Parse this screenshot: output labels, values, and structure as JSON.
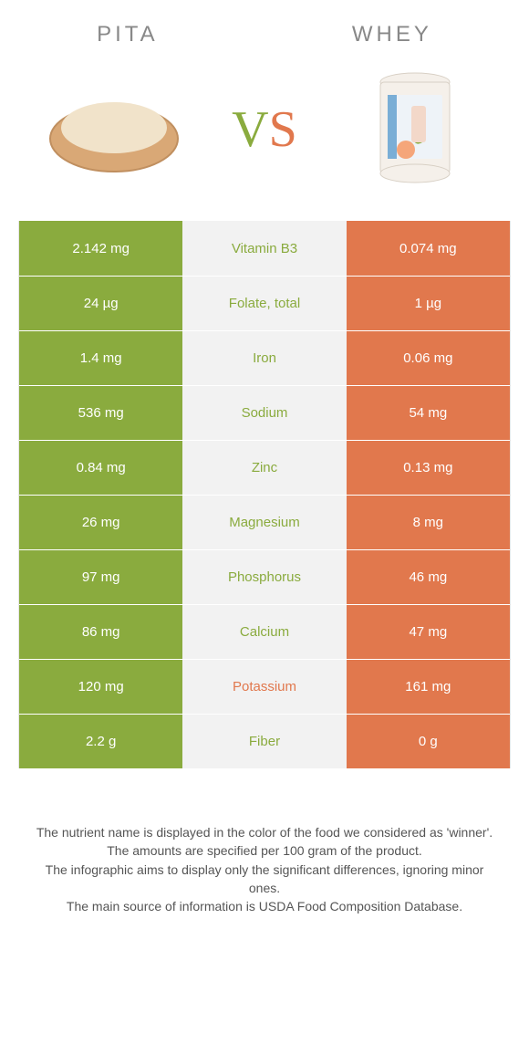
{
  "header": {
    "left_title": "Pita",
    "right_title": "Whey"
  },
  "vs": {
    "v": "V",
    "s": "S"
  },
  "colors": {
    "pita": "#8aab3e",
    "whey": "#e1784d",
    "mid_bg": "#f2f2f2"
  },
  "rows": [
    {
      "left": "2.142 mg",
      "nutrient": "Vitamin B3",
      "right": "0.074 mg",
      "winner": "pita"
    },
    {
      "left": "24 µg",
      "nutrient": "Folate, total",
      "right": "1 µg",
      "winner": "pita"
    },
    {
      "left": "1.4 mg",
      "nutrient": "Iron",
      "right": "0.06 mg",
      "winner": "pita"
    },
    {
      "left": "536 mg",
      "nutrient": "Sodium",
      "right": "54 mg",
      "winner": "pita"
    },
    {
      "left": "0.84 mg",
      "nutrient": "Zinc",
      "right": "0.13 mg",
      "winner": "pita"
    },
    {
      "left": "26 mg",
      "nutrient": "Magnesium",
      "right": "8 mg",
      "winner": "pita"
    },
    {
      "left": "97 mg",
      "nutrient": "Phosphorus",
      "right": "46 mg",
      "winner": "pita"
    },
    {
      "left": "86 mg",
      "nutrient": "Calcium",
      "right": "47 mg",
      "winner": "pita"
    },
    {
      "left": "120 mg",
      "nutrient": "Potassium",
      "right": "161 mg",
      "winner": "whey"
    },
    {
      "left": "2.2 g",
      "nutrient": "Fiber",
      "right": "0 g",
      "winner": "pita"
    }
  ],
  "footer": {
    "l1": "The nutrient name is displayed in the color of the food we considered as 'winner'.",
    "l2": "The amounts are specified per 100 gram of the product.",
    "l3": "The infographic aims to display only the significant differences, ignoring minor ones.",
    "l4": "The main source of information is USDA Food Composition Database."
  }
}
